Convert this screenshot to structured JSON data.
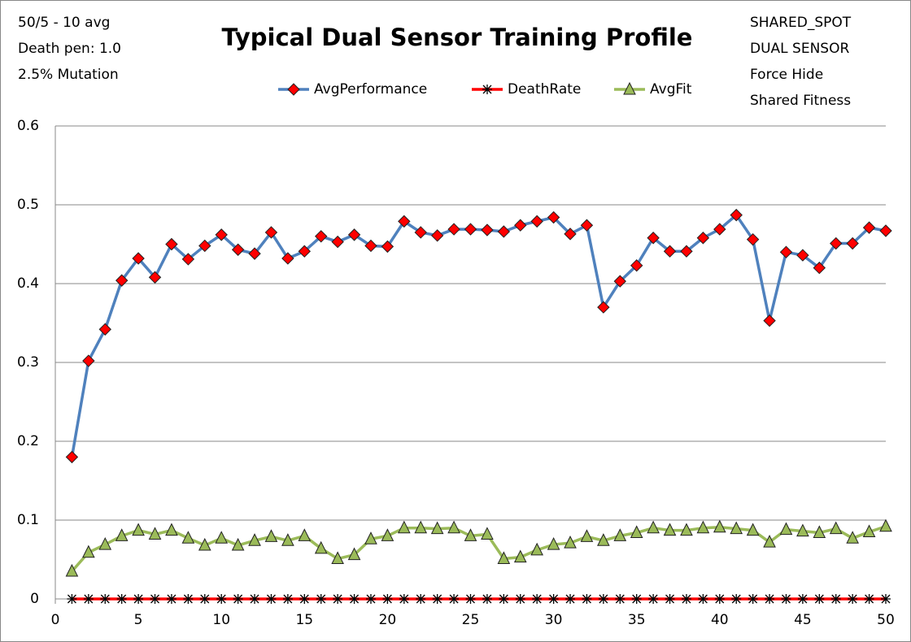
{
  "chart_data": {
    "type": "line",
    "title": "Typical Dual Sensor Training Profile",
    "notes_left": [
      "50/5 - 10 avg",
      "Death pen: 1.0",
      "2.5% Mutation"
    ],
    "notes_right": [
      "SHARED_SPOT",
      "DUAL SENSOR",
      "Force Hide",
      "Shared Fitness"
    ],
    "x": [
      1,
      2,
      3,
      4,
      5,
      6,
      7,
      8,
      9,
      10,
      11,
      12,
      13,
      14,
      15,
      16,
      17,
      18,
      19,
      20,
      21,
      22,
      23,
      24,
      25,
      26,
      27,
      28,
      29,
      30,
      31,
      32,
      33,
      34,
      35,
      36,
      37,
      38,
      39,
      40,
      41,
      42,
      43,
      44,
      45,
      46,
      47,
      48,
      49,
      50
    ],
    "series": [
      {
        "name": "AvgPerformance",
        "color": "#4f81bd",
        "marker": "diamond",
        "marker_color": "#ff0000",
        "values": [
          0.18,
          0.302,
          0.342,
          0.404,
          0.432,
          0.408,
          0.45,
          0.431,
          0.448,
          0.462,
          0.443,
          0.438,
          0.465,
          0.432,
          0.441,
          0.46,
          0.453,
          0.462,
          0.448,
          0.447,
          0.479,
          0.465,
          0.461,
          0.469,
          0.469,
          0.468,
          0.466,
          0.474,
          0.479,
          0.484,
          0.463,
          0.474,
          0.37,
          0.403,
          0.423,
          0.458,
          0.441,
          0.441,
          0.458,
          0.469,
          0.487,
          0.456,
          0.353,
          0.44,
          0.436,
          0.42,
          0.451,
          0.451,
          0.471,
          0.467
        ]
      },
      {
        "name": "DeathRate",
        "color": "#ff0000",
        "marker": "star",
        "marker_color": "#000000",
        "values": [
          0,
          0,
          0,
          0,
          0,
          0,
          0,
          0,
          0,
          0,
          0,
          0,
          0,
          0,
          0,
          0,
          0,
          0,
          0,
          0,
          0,
          0,
          0,
          0,
          0,
          0,
          0,
          0,
          0,
          0,
          0,
          0,
          0,
          0,
          0,
          0,
          0,
          0,
          0,
          0,
          0,
          0,
          0,
          0,
          0,
          0,
          0,
          0,
          0,
          0
        ]
      },
      {
        "name": "AvgFit",
        "color": "#9bbb59",
        "marker": "triangle",
        "marker_color": "#9bbb59",
        "values": [
          0.035,
          0.059,
          0.069,
          0.08,
          0.087,
          0.082,
          0.087,
          0.077,
          0.068,
          0.077,
          0.068,
          0.074,
          0.079,
          0.074,
          0.08,
          0.064,
          0.051,
          0.056,
          0.076,
          0.08,
          0.09,
          0.09,
          0.089,
          0.09,
          0.08,
          0.082,
          0.051,
          0.053,
          0.062,
          0.069,
          0.071,
          0.079,
          0.074,
          0.08,
          0.084,
          0.09,
          0.087,
          0.087,
          0.09,
          0.091,
          0.089,
          0.087,
          0.072,
          0.088,
          0.086,
          0.084,
          0.089,
          0.077,
          0.085,
          0.092
        ]
      }
    ],
    "xlim": [
      0,
      50
    ],
    "xticks": [
      0,
      5,
      10,
      15,
      20,
      25,
      30,
      35,
      40,
      45,
      50
    ],
    "ylim": [
      0,
      0.6
    ],
    "yticks": [
      0,
      0.1,
      0.2,
      0.3,
      0.4,
      0.5,
      0.6
    ],
    "grid": true
  }
}
